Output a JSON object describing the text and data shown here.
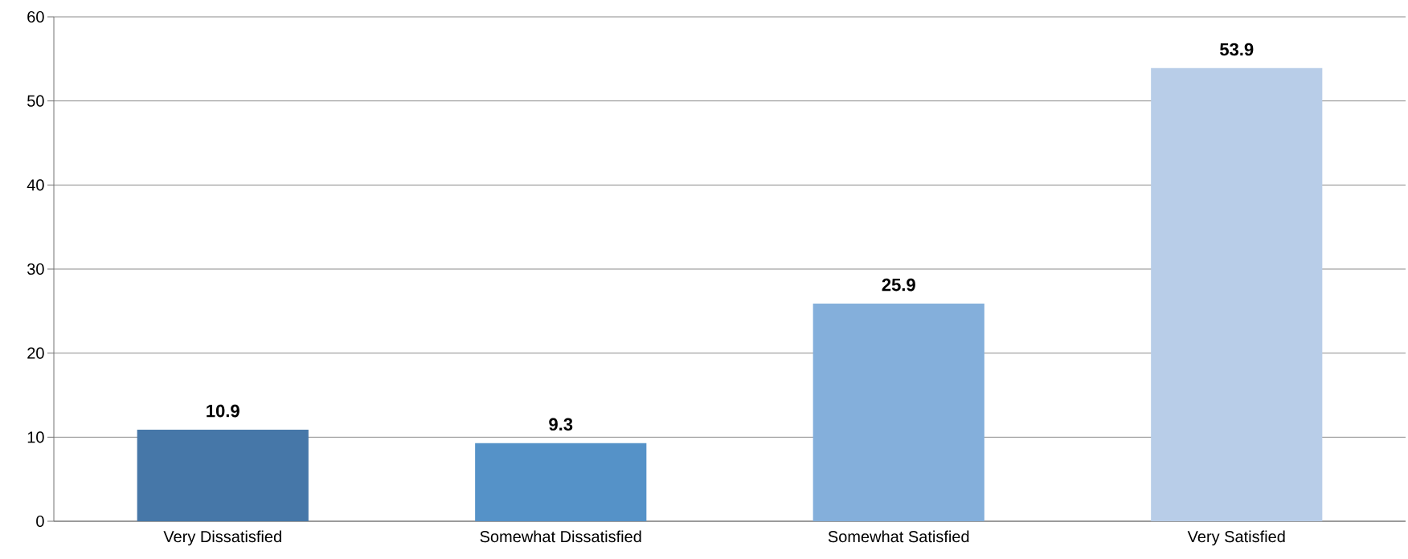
{
  "chart_data": {
    "type": "bar",
    "categories": [
      "Very Dissatisfied",
      "Somewhat Dissatisfied",
      "Somewhat Satisfied",
      "Very Satisfied"
    ],
    "values": [
      10.9,
      9.3,
      25.9,
      53.9
    ],
    "colors": [
      "#4677a8",
      "#5592c8",
      "#84afdb",
      "#b8cde8"
    ],
    "ylim": [
      0,
      60
    ],
    "yticks": [
      0,
      10,
      20,
      30,
      40,
      50,
      60
    ],
    "grid": "y",
    "data_labels": true
  }
}
